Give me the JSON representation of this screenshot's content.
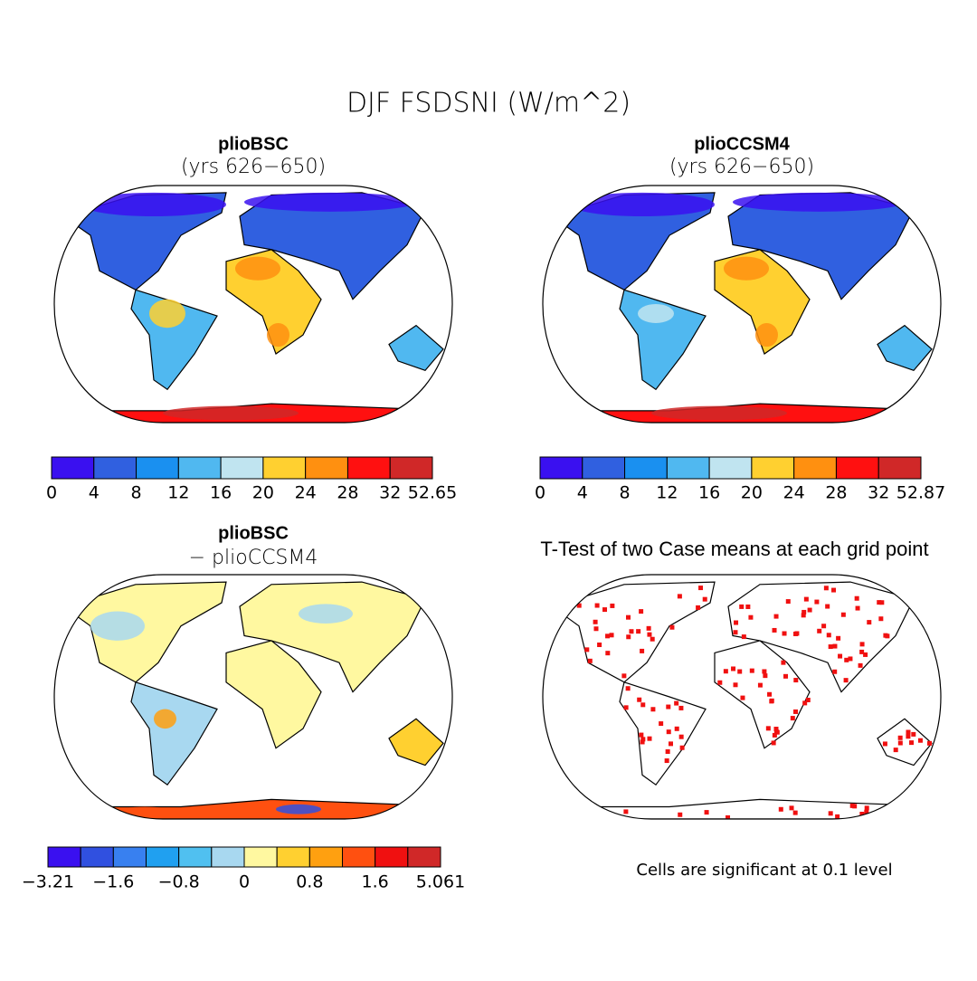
{
  "title": "DJF FSDSNI (W/m^2)",
  "panels": [
    {
      "title": "plioBSC",
      "subtitle": "(yrs 626−650)",
      "colorbar": {
        "colors": [
          "#3a10f0",
          "#3060e0",
          "#1a90f0",
          "#50b8f0",
          "#c0e4f0",
          "#ffd030",
          "#ff9010",
          "#ff1010",
          "#d02828"
        ],
        "labels": [
          "0",
          "4",
          "8",
          "12",
          "16",
          "20",
          "24",
          "28",
          "32",
          "52.65"
        ]
      }
    },
    {
      "title": "plioCCSM4",
      "subtitle": "(yrs 626−650)",
      "colorbar": {
        "colors": [
          "#3a10f0",
          "#3060e0",
          "#1a90f0",
          "#50b8f0",
          "#c0e4f0",
          "#ffd030",
          "#ff9010",
          "#ff1010",
          "#d02828"
        ],
        "labels": [
          "0",
          "4",
          "8",
          "12",
          "16",
          "20",
          "24",
          "28",
          "32",
          "52.87"
        ]
      }
    },
    {
      "title": "plioBSC",
      "subtitle": "− plioCCSM4",
      "colorbar": {
        "colors": [
          "#3a10f0",
          "#3050e0",
          "#3880f0",
          "#20a0f0",
          "#50c0f0",
          "#a8d8f0",
          "#fff8a0",
          "#ffd030",
          "#ffa010",
          "#ff5010",
          "#f01010",
          "#d02828"
        ],
        "labels": [
          "−3.21",
          null,
          "−1.6",
          null,
          "−0.8",
          null,
          "0",
          null,
          "0.8",
          null,
          "1.6",
          null,
          "5.061"
        ]
      }
    }
  ],
  "ttest": {
    "title": "T-Test of two Case means at each grid point",
    "note": "Cells are significant at 0.1 level"
  }
}
